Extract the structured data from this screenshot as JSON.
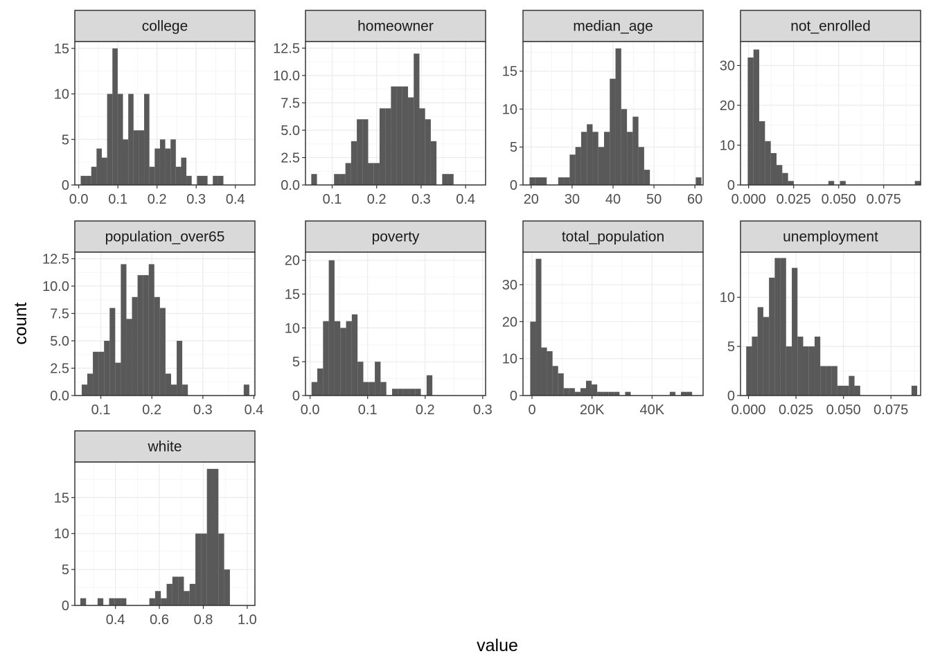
{
  "chart_data": {
    "type": "bar",
    "layout": "faceted-histogram",
    "xlabel": "value",
    "ylabel": "count",
    "theme": {
      "panel_background": "#ffffff",
      "panel_border": "#333333",
      "strip_fill": "#d9d9d9",
      "strip_border": "#333333",
      "grid_major": "#ebebeb",
      "grid_minor": "#f5f5f5",
      "bar_fill": "#595959",
      "grid": true
    },
    "facets": [
      {
        "name": "college",
        "xlim": [
          -0.01,
          0.45
        ],
        "ylim": [
          0,
          15.75
        ],
        "x_ticks": [
          0.0,
          0.1,
          0.2,
          0.3,
          0.4
        ],
        "x_tick_labels": [
          "0.0",
          "0.1",
          "0.2",
          "0.3",
          "0.4"
        ],
        "y_ticks": [
          0,
          5,
          10,
          15
        ],
        "y_tick_labels": [
          "0",
          "5",
          "10",
          "15"
        ],
        "bin_start": 0.005,
        "bin_width": 0.0135,
        "counts": [
          1,
          1,
          2,
          4,
          3,
          10,
          15,
          10,
          5,
          10,
          6,
          6,
          10,
          2,
          4,
          5,
          4,
          5,
          2,
          3,
          1,
          0,
          1,
          1,
          0,
          1,
          1
        ]
      },
      {
        "name": "homeowner",
        "xlim": [
          0.04,
          0.445
        ],
        "ylim": [
          0,
          13.1
        ],
        "x_ticks": [
          0.1,
          0.2,
          0.3,
          0.4
        ],
        "x_tick_labels": [
          "0.1",
          "0.2",
          "0.3",
          "0.4"
        ],
        "y_ticks": [
          0.0,
          2.5,
          5.0,
          7.5,
          10.0,
          12.5
        ],
        "y_tick_labels": [
          "0.0",
          "2.5",
          "5.0",
          "7.5",
          "10.0",
          "12.5"
        ],
        "bin_start": 0.053,
        "bin_width": 0.0128,
        "counts": [
          1,
          0,
          0,
          0,
          1,
          1,
          2,
          4,
          6,
          6,
          2,
          2,
          7,
          7,
          9,
          9,
          9,
          8,
          12,
          7,
          6,
          4,
          0,
          1,
          1
        ]
      },
      {
        "name": "median_age",
        "xlim": [
          18,
          62
        ],
        "ylim": [
          0,
          18.9
        ],
        "x_ticks": [
          20,
          30,
          40,
          50,
          60
        ],
        "x_tick_labels": [
          "20",
          "30",
          "40",
          "50",
          "60"
        ],
        "y_ticks": [
          0,
          5,
          10,
          15
        ],
        "y_tick_labels": [
          "0",
          "5",
          "10",
          "15"
        ],
        "bin_start": 19.6,
        "bin_width": 1.4,
        "counts": [
          1,
          1,
          1,
          0,
          0,
          1,
          1,
          4,
          5,
          7,
          8,
          7,
          5,
          7,
          14,
          18,
          10,
          7,
          9,
          5,
          2,
          0,
          0,
          0,
          0,
          0,
          0,
          0,
          0,
          1
        ]
      },
      {
        "name": "not_enrolled",
        "xlim": [
          -0.0045,
          0.0955
        ],
        "ylim": [
          0,
          36
        ],
        "x_ticks": [
          0.0,
          0.025,
          0.05,
          0.075
        ],
        "x_tick_labels": [
          "0.000",
          "0.025",
          "0.050",
          "0.075"
        ],
        "y_ticks": [
          0,
          10,
          20,
          30
        ],
        "y_tick_labels": [
          "0",
          "10",
          "20",
          "30"
        ],
        "bin_start": -0.0005,
        "bin_width": 0.0032,
        "counts": [
          32,
          34,
          16,
          11,
          8,
          5,
          3,
          1,
          0,
          0,
          0,
          0,
          0,
          0,
          1,
          0,
          1,
          0,
          0,
          0,
          0,
          0,
          0,
          0,
          0,
          0,
          0,
          0,
          0,
          1
        ]
      },
      {
        "name": "population_over65",
        "xlim": [
          0.049,
          0.402
        ],
        "ylim": [
          0,
          13.1
        ],
        "x_ticks": [
          0.1,
          0.2,
          0.3,
          0.4
        ],
        "x_tick_labels": [
          "0.1",
          "0.2",
          "0.3",
          "0.4"
        ],
        "y_ticks": [
          0.0,
          2.5,
          5.0,
          7.5,
          10.0,
          12.5
        ],
        "y_tick_labels": [
          "0.0",
          "2.5",
          "5.0",
          "7.5",
          "10.0",
          "12.5"
        ],
        "bin_start": 0.0625,
        "bin_width": 0.01095,
        "counts": [
          1,
          2,
          4,
          4,
          5,
          8,
          3,
          12,
          7,
          9,
          11,
          11,
          12,
          9,
          8,
          2,
          1,
          5,
          1,
          0,
          0,
          0,
          0,
          0,
          0,
          0,
          0,
          0,
          0,
          1
        ]
      },
      {
        "name": "poverty",
        "xlim": [
          -0.008,
          0.305
        ],
        "ylim": [
          0,
          21.2
        ],
        "x_ticks": [
          0.0,
          0.1,
          0.2,
          0.3
        ],
        "x_tick_labels": [
          "0.0",
          "0.1",
          "0.2",
          "0.3"
        ],
        "y_ticks": [
          0,
          5,
          10,
          15,
          20
        ],
        "y_tick_labels": [
          "0",
          "5",
          "10",
          "15",
          "20"
        ],
        "bin_start": 0.0025,
        "bin_width": 0.01,
        "counts": [
          2,
          4,
          11,
          20,
          11,
          10,
          11,
          12,
          5,
          2,
          2,
          5,
          2,
          0,
          1,
          1,
          1,
          1,
          1,
          0,
          3,
          0,
          0,
          0,
          0,
          0,
          0,
          0,
          0
        ]
      },
      {
        "name": "total_population",
        "xlim": [
          -3000,
          57000
        ],
        "ylim": [
          0,
          38.8
        ],
        "x_ticks": [
          0,
          20000,
          40000
        ],
        "x_tick_labels": [
          "0",
          "20K",
          "40K"
        ],
        "y_ticks": [
          0,
          10,
          20,
          30
        ],
        "y_tick_labels": [
          "0",
          "10",
          "20",
          "30"
        ],
        "bin_start": -600,
        "bin_width": 1860,
        "counts": [
          20,
          37,
          13,
          12,
          8,
          6,
          2,
          2,
          1,
          2,
          4,
          3,
          1,
          1,
          1,
          1,
          0,
          1,
          0,
          0,
          0,
          0,
          0,
          0,
          0,
          1,
          0,
          1,
          1
        ]
      },
      {
        "name": "unemployment",
        "xlim": [
          -0.0042,
          0.0906
        ],
        "ylim": [
          0,
          14.6
        ],
        "x_ticks": [
          0.0,
          0.025,
          0.05,
          0.075
        ],
        "x_tick_labels": [
          "0.000",
          "0.025",
          "0.050",
          "0.075"
        ],
        "y_ticks": [
          0,
          5,
          10
        ],
        "y_tick_labels": [
          "0",
          "5",
          "10"
        ],
        "bin_start": -0.0012,
        "bin_width": 0.003,
        "counts": [
          5,
          6,
          9,
          8,
          12,
          14,
          14,
          5,
          13,
          6,
          5,
          5,
          6,
          3,
          3,
          3,
          1,
          1,
          2,
          1,
          0,
          0,
          0,
          0,
          0,
          0,
          0,
          0,
          0,
          1
        ]
      },
      {
        "name": "white",
        "xlim": [
          0.215,
          1.035
        ],
        "ylim": [
          0,
          19.95
        ],
        "x_ticks": [
          0.4,
          0.6,
          0.8,
          1.0
        ],
        "x_tick_labels": [
          "0.4",
          "0.6",
          "0.8",
          "1.0"
        ],
        "y_ticks": [
          0,
          5,
          10,
          15
        ],
        "y_tick_labels": [
          "0",
          "5",
          "10",
          "15"
        ],
        "bin_start": 0.24,
        "bin_width": 0.0262,
        "counts": [
          1,
          0,
          0,
          1,
          0,
          1,
          1,
          1,
          0,
          0,
          0,
          0,
          1,
          2,
          1,
          3,
          4,
          4,
          2,
          3,
          10,
          10,
          19,
          19,
          10,
          5
        ]
      }
    ]
  }
}
